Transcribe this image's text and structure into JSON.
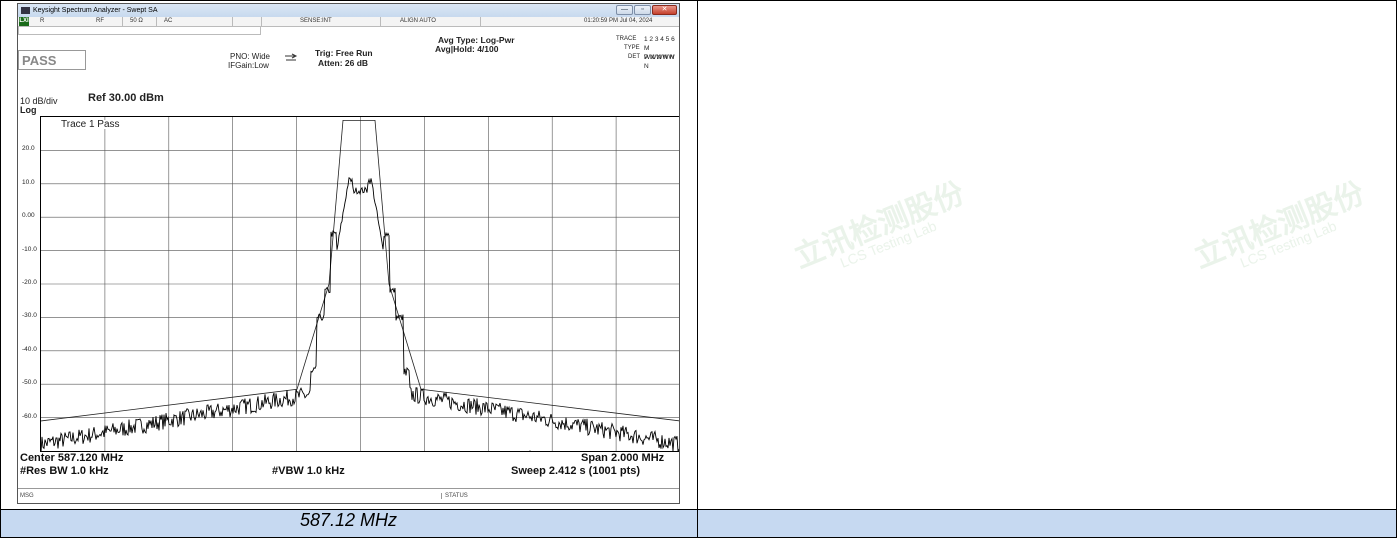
{
  "window": {
    "title": "Keysight Spectrum Analyzer - Swept SA",
    "buttons": {
      "minimize": "—",
      "maximize": "▫",
      "close": "✕"
    }
  },
  "status_row": {
    "lxi": "LXI",
    "r": "R",
    "rf": "RF",
    "impedance": "50 Ω",
    "coupling": "AC",
    "sense": "SENSE:INT",
    "align": "ALIGN AUTO",
    "datetime": "01:20:59 PM Jul 04, 2024"
  },
  "settings": {
    "pass_label": "PASS",
    "pno": "PNO: Wide",
    "ifgain": "IFGain:Low",
    "trig": "Trig: Free Run",
    "atten": "Atten: 26 dB",
    "avg_type": "Avg Type: Log-Pwr",
    "avg_hold": "Avg|Hold: 4/100",
    "trace_label": "TRACE",
    "trace_values": "1 2 3 4 5 6",
    "type_label": "TYPE",
    "type_values": "M WWWWW",
    "det_label": "DET",
    "det_values": "P N N N N N"
  },
  "scale": {
    "per_div": "10 dB/div",
    "log": "Log",
    "ref": "Ref 30.00 dBm",
    "trace_pass": "Trace 1 Pass",
    "y_labels": [
      "20.0",
      "10.0",
      "0.00",
      "-10.0",
      "-20.0",
      "-30.0",
      "-40.0",
      "-50.0",
      "-60.0"
    ]
  },
  "footer": {
    "center": "Center 587.120 MHz",
    "res_bw": "#Res BW 1.0 kHz",
    "vbw": "#VBW 1.0 kHz",
    "span": "Span 2.000 MHz",
    "sweep": "Sweep  2.412 s (1001 pts)",
    "msg": "MSG",
    "status": "STATUS"
  },
  "caption": "587.12 MHz",
  "watermark": {
    "cn": "立讯检测股份",
    "en": "LCS Testing Lab"
  },
  "colors": {
    "caption_bg": "#c6d9f1",
    "lxi_green": "#1a6b1a"
  }
}
